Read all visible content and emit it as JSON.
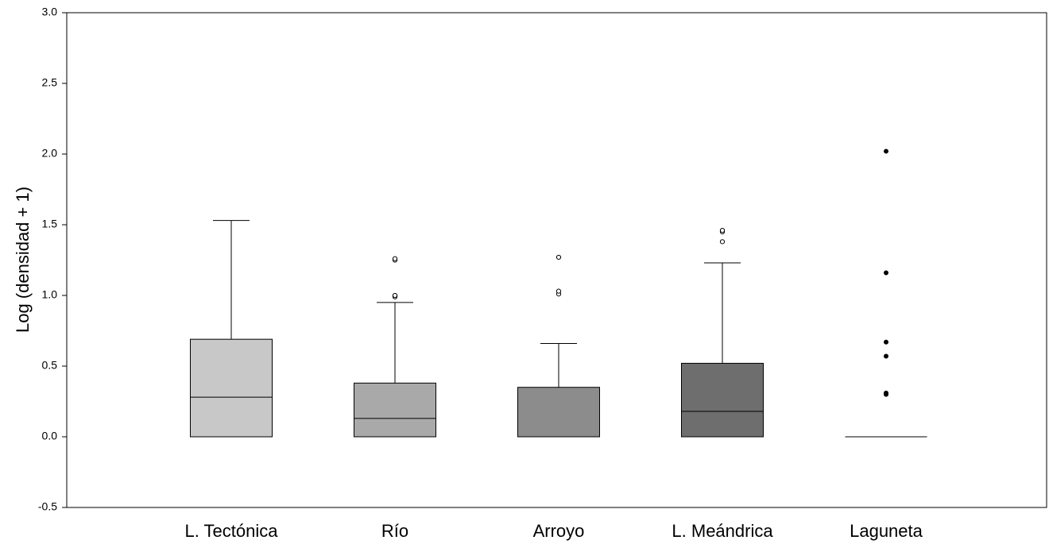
{
  "chart_data": {
    "type": "box",
    "title": "",
    "xlabel": "",
    "ylabel": "Log (densidad + 1)",
    "ylim": [
      -0.5,
      3.0
    ],
    "yticks": [
      "3.0",
      "2.5",
      "2.0",
      "1.5",
      "1.0",
      "0.5",
      "0.0",
      "-0.5"
    ],
    "ytick_values": [
      3.0,
      2.5,
      2.0,
      1.5,
      1.0,
      0.5,
      0.0,
      -0.5
    ],
    "grid": false,
    "legend": "none",
    "categories": [
      "L. Tectónica",
      "Río",
      "Arroyo",
      "L. Meándrica",
      "Laguneta"
    ],
    "boxes": [
      {
        "category": "L. Tectónica",
        "min": 0.0,
        "q1": 0.0,
        "median": 0.28,
        "q3": 0.69,
        "max": 1.53,
        "outliers": [],
        "outlier_style": "open",
        "fill": "#c8c8c8"
      },
      {
        "category": "Río",
        "min": 0.0,
        "q1": 0.0,
        "median": 0.13,
        "q3": 0.38,
        "max": 0.95,
        "outliers": [
          0.99,
          1.0,
          1.25,
          1.26
        ],
        "outlier_style": "open",
        "fill": "#a9a9a9"
      },
      {
        "category": "Arroyo",
        "min": 0.0,
        "q1": 0.0,
        "median": 0.0,
        "q3": 0.35,
        "max": 0.66,
        "outliers": [
          1.01,
          1.03,
          1.27
        ],
        "outlier_style": "open",
        "fill": "#8c8c8c"
      },
      {
        "category": "L. Meándrica",
        "min": 0.0,
        "q1": 0.0,
        "median": 0.18,
        "q3": 0.52,
        "max": 1.23,
        "outliers": [
          1.38,
          1.45,
          1.46
        ],
        "outlier_style": "open",
        "fill": "#6e6e6e"
      },
      {
        "category": "Laguneta",
        "min": 0.0,
        "q1": 0.0,
        "median": 0.0,
        "q3": 0.0,
        "max": 0.0,
        "outliers": [
          0.3,
          0.31,
          0.57,
          0.67,
          1.16,
          2.02
        ],
        "outlier_style": "filled",
        "fill": "#ffffff"
      }
    ]
  }
}
